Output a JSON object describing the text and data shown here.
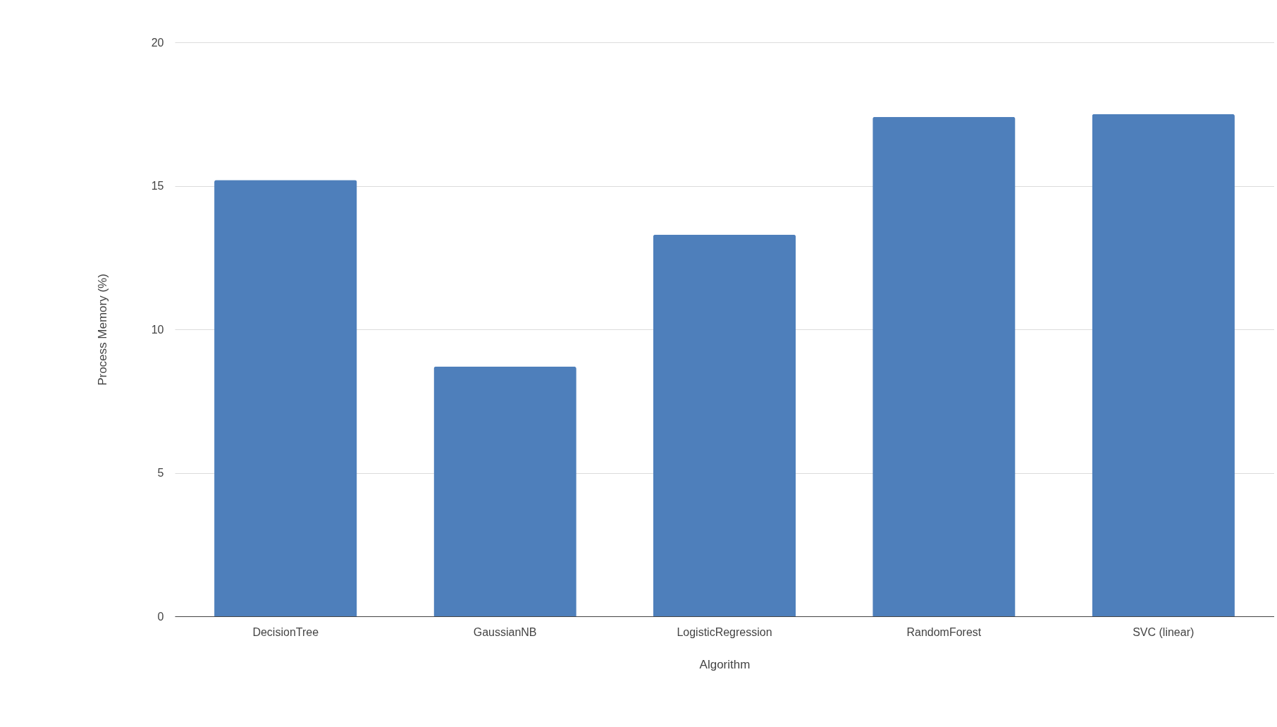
{
  "chart_data": {
    "type": "bar",
    "xlabel": "Algorithm",
    "ylabel": "Process Memory (%)",
    "categories": [
      "DecisionTree",
      "GaussianNB",
      "LogisticRegression",
      "RandomForest",
      "SVC (linear)"
    ],
    "values": [
      15.2,
      8.7,
      13.3,
      17.4,
      17.5
    ],
    "color": "#4e7fbb",
    "ylim": [
      0,
      20
    ],
    "yticks": [
      0,
      5,
      10,
      15,
      20
    ],
    "grid": "y"
  }
}
